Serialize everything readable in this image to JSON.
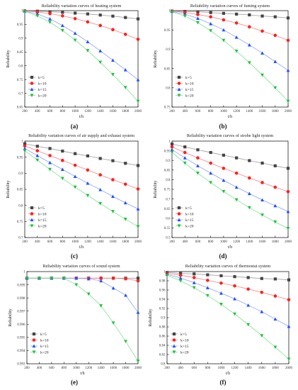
{
  "figure": {
    "panel_letters": [
      "(a)",
      "(b)",
      "(c)",
      "(d)",
      "(e)",
      "(f)"
    ]
  },
  "chart_data": [
    {
      "type": "line",
      "title": "Reliability variation curves of heating system",
      "xlabel": "t/h",
      "ylabel": "Reliability",
      "xlim": [
        200,
        2000
      ],
      "ylim": [
        0.65,
        1.0
      ],
      "x_ticks": [
        200,
        400,
        600,
        800,
        1000,
        1200,
        1400,
        1600,
        1800,
        2000
      ],
      "y_ticks": [
        0.65,
        0.7,
        0.75,
        0.8,
        0.85,
        0.9,
        0.95,
        1
      ],
      "legend_position": "lower-left",
      "x": [
        200,
        400,
        600,
        800,
        1000,
        1200,
        1400,
        1600,
        1800,
        2000
      ],
      "series": [
        {
          "name": "k=5",
          "marker": "square",
          "color": "#444444",
          "line_color": "#9a9a9a",
          "values": [
            0.999,
            0.998,
            0.996,
            0.994,
            0.991,
            0.988,
            0.984,
            0.98,
            0.975,
            0.97
          ]
        },
        {
          "name": "k=10",
          "marker": "circle",
          "color": "#ff2020",
          "line_color": "#ff8080",
          "values": [
            0.999,
            0.995,
            0.989,
            0.981,
            0.971,
            0.959,
            0.946,
            0.931,
            0.914,
            0.896
          ]
        },
        {
          "name": "k=15",
          "marker": "triangle-up",
          "color": "#1f4fff",
          "line_color": "#8aa0ff",
          "values": [
            0.998,
            0.988,
            0.97,
            0.946,
            0.918,
            0.887,
            0.854,
            0.82,
            0.785,
            0.749
          ]
        },
        {
          "name": "k=20",
          "marker": "triangle-down",
          "color": "#1fbf3f",
          "line_color": "#7fe08f",
          "values": [
            0.997,
            0.981,
            0.958,
            0.928,
            0.893,
            0.855,
            0.813,
            0.768,
            0.721,
            0.671
          ]
        }
      ]
    },
    {
      "type": "line",
      "title": "Reliability variation curves of fuming system",
      "xlabel": "t/h",
      "ylabel": "Reliability",
      "xlim": [
        200,
        2000
      ],
      "ylim": [
        0.75,
        1.0
      ],
      "x_ticks": [
        200,
        400,
        600,
        800,
        1000,
        1200,
        1400,
        1600,
        1800,
        2000
      ],
      "y_ticks": [
        0.75,
        0.8,
        0.85,
        0.9,
        0.95,
        1
      ],
      "legend_position": "lower-left",
      "x": [
        200,
        400,
        600,
        800,
        1000,
        1200,
        1400,
        1600,
        1800,
        2000
      ],
      "series": [
        {
          "name": "k=5",
          "marker": "square",
          "color": "#444444",
          "line_color": "#9a9a9a",
          "values": [
            0.999,
            0.998,
            0.997,
            0.995,
            0.993,
            0.991,
            0.989,
            0.986,
            0.984,
            0.981
          ]
        },
        {
          "name": "k=10",
          "marker": "circle",
          "color": "#ff2020",
          "line_color": "#ff8080",
          "values": [
            0.999,
            0.995,
            0.99,
            0.984,
            0.976,
            0.968,
            0.958,
            0.947,
            0.936,
            0.923
          ]
        },
        {
          "name": "k=15",
          "marker": "triangle-up",
          "color": "#1f4fff",
          "line_color": "#8aa0ff",
          "values": [
            0.998,
            0.991,
            0.98,
            0.966,
            0.95,
            0.931,
            0.911,
            0.89,
            0.868,
            0.845
          ]
        },
        {
          "name": "k=20",
          "marker": "triangle-down",
          "color": "#1fbf3f",
          "line_color": "#7fe08f",
          "values": [
            0.997,
            0.986,
            0.969,
            0.948,
            0.923,
            0.895,
            0.865,
            0.833,
            0.8,
            0.765
          ]
        }
      ]
    },
    {
      "type": "line",
      "title": "Reliability variation curves of  air supply and exhaust system",
      "xlabel": "t/h",
      "ylabel": "Reliability",
      "xlim": [
        200,
        2000
      ],
      "ylim": [
        0.7,
        1.0
      ],
      "x_ticks": [
        200,
        400,
        600,
        800,
        1000,
        1200,
        1400,
        1600,
        1800,
        2000
      ],
      "y_ticks": [
        0.7,
        0.75,
        0.8,
        0.85,
        0.9,
        0.95,
        1
      ],
      "legend_position": "lower-left",
      "x": [
        200,
        400,
        600,
        800,
        1000,
        1200,
        1400,
        1600,
        1800,
        2000
      ],
      "series": [
        {
          "name": "k=5",
          "marker": "square",
          "color": "#444444",
          "line_color": "#9a9a9a",
          "values": [
            0.992,
            0.984,
            0.977,
            0.969,
            0.961,
            0.954,
            0.946,
            0.939,
            0.931,
            0.924
          ]
        },
        {
          "name": "k=10",
          "marker": "circle",
          "color": "#ff2020",
          "line_color": "#ff8080",
          "values": [
            0.985,
            0.97,
            0.955,
            0.94,
            0.925,
            0.91,
            0.895,
            0.88,
            0.866,
            0.851
          ]
        },
        {
          "name": "k=15",
          "marker": "triangle-up",
          "color": "#1f4fff",
          "line_color": "#8aa0ff",
          "values": [
            0.977,
            0.955,
            0.933,
            0.912,
            0.89,
            0.869,
            0.849,
            0.828,
            0.808,
            0.789
          ]
        },
        {
          "name": "k=20",
          "marker": "triangle-down",
          "color": "#1fbf3f",
          "line_color": "#7fe08f",
          "values": [
            0.97,
            0.941,
            0.912,
            0.884,
            0.857,
            0.831,
            0.806,
            0.781,
            0.757,
            0.734
          ]
        }
      ]
    },
    {
      "type": "line",
      "title": "Reliability variation curves of strobe light system",
      "xlabel": "t/h",
      "ylabel": "Reliability",
      "xlim": [
        200,
        2000
      ],
      "ylim": [
        0.5,
        1.0
      ],
      "x_ticks": [
        200,
        400,
        600,
        800,
        1000,
        1200,
        1400,
        1600,
        1800,
        2000
      ],
      "y_ticks": [
        0.5,
        0.55,
        0.6,
        0.65,
        0.7,
        0.75,
        0.8,
        0.85,
        0.9,
        0.95,
        1
      ],
      "legend_position": "lower-left",
      "x": [
        200,
        400,
        600,
        800,
        1000,
        1200,
        1400,
        1600,
        1800,
        2000
      ],
      "series": [
        {
          "name": "k=5",
          "marker": "square",
          "color": "#444444",
          "line_color": "#9a9a9a",
          "values": [
            0.985,
            0.97,
            0.955,
            0.941,
            0.927,
            0.913,
            0.899,
            0.886,
            0.872,
            0.859
          ]
        },
        {
          "name": "k=10",
          "marker": "circle",
          "color": "#ff2020",
          "line_color": "#ff8080",
          "values": [
            0.97,
            0.941,
            0.913,
            0.886,
            0.859,
            0.834,
            0.809,
            0.785,
            0.761,
            0.738
          ]
        },
        {
          "name": "k=15",
          "marker": "triangle-up",
          "color": "#1f4fff",
          "line_color": "#8aa0ff",
          "values": [
            0.956,
            0.913,
            0.872,
            0.834,
            0.797,
            0.761,
            0.728,
            0.695,
            0.665,
            0.635
          ]
        },
        {
          "name": "k=20",
          "marker": "triangle-down",
          "color": "#1fbf3f",
          "line_color": "#7fe08f",
          "values": [
            0.942,
            0.886,
            0.834,
            0.785,
            0.739,
            0.696,
            0.655,
            0.617,
            0.581,
            0.547
          ]
        }
      ]
    },
    {
      "type": "line",
      "title": "Reliability variation curves of sound system",
      "xlabel": "t/h",
      "ylabel": "Reliability",
      "xlim": [
        200,
        2000
      ],
      "ylim": [
        0.993,
        1.0
      ],
      "x_ticks": [
        200,
        400,
        600,
        800,
        1000,
        1200,
        1400,
        1600,
        1800,
        2000
      ],
      "y_ticks": [
        0.993,
        0.994,
        0.995,
        0.996,
        0.997,
        0.998,
        0.999,
        1
      ],
      "y_tick_labels": [
        "0.993",
        "0.994",
        "0.995",
        "0.996",
        "0.997",
        "0.998",
        "0.999",
        "1"
      ],
      "legend_position": "lower-left",
      "x": [
        200,
        400,
        600,
        800,
        1000,
        1200,
        1400,
        1600,
        1800,
        2000
      ],
      "series": [
        {
          "name": "k=5",
          "marker": "square",
          "color": "#444444",
          "line_color": "#9a9a9a",
          "values": [
            0.9995,
            0.9995,
            0.9995,
            0.9995,
            0.9995,
            0.9995,
            0.9995,
            0.9995,
            0.9995,
            0.9995
          ]
        },
        {
          "name": "k=10",
          "marker": "circle",
          "color": "#ff2020",
          "line_color": "#ff8080",
          "values": [
            0.9995,
            0.9995,
            0.9995,
            0.9995,
            0.9995,
            0.9995,
            0.9995,
            0.9995,
            0.99945,
            0.9993
          ]
        },
        {
          "name": "k=15",
          "marker": "triangle-up",
          "color": "#1f4fff",
          "line_color": "#8aa0ff",
          "values": [
            0.9995,
            0.9995,
            0.9995,
            0.9995,
            0.9995,
            0.99945,
            0.9993,
            0.99875,
            0.9982,
            0.9969
          ]
        },
        {
          "name": "k=20",
          "marker": "triangle-down",
          "color": "#1fbf3f",
          "line_color": "#7fe08f",
          "values": [
            0.9995,
            0.9995,
            0.9995,
            0.9995,
            0.999,
            0.9983,
            0.9974,
            0.9961,
            0.9947,
            0.9932
          ]
        }
      ]
    },
    {
      "type": "line",
      "title": "Reliability variation curves of thermostat system",
      "xlabel": "t/h",
      "ylabel": "Reliability",
      "xlim": [
        200,
        2000
      ],
      "ylim": [
        0.8,
        1.0
      ],
      "x_ticks": [
        200,
        400,
        600,
        800,
        1000,
        1200,
        1400,
        1600,
        1800,
        2000
      ],
      "y_ticks": [
        0.8,
        0.82,
        0.84,
        0.86,
        0.88,
        0.9,
        0.92,
        0.94,
        0.96,
        0.98,
        1
      ],
      "legend_position": "lower-left",
      "x": [
        200,
        400,
        600,
        800,
        1000,
        1200,
        1400,
        1600,
        1800,
        2000
      ],
      "series": [
        {
          "name": "k=5",
          "marker": "square",
          "color": "#444444",
          "line_color": "#9a9a9a",
          "values": [
            0.998,
            0.996,
            0.995,
            0.993,
            0.991,
            0.989,
            0.987,
            0.985,
            0.984,
            0.982
          ]
        },
        {
          "name": "k=10",
          "marker": "circle",
          "color": "#ff2020",
          "line_color": "#ff8080",
          "values": [
            0.996,
            0.992,
            0.987,
            0.981,
            0.975,
            0.969,
            0.962,
            0.955,
            0.947,
            0.939
          ]
        },
        {
          "name": "k=15",
          "marker": "triangle-up",
          "color": "#1f4fff",
          "line_color": "#8aa0ff",
          "values": [
            0.994,
            0.986,
            0.976,
            0.965,
            0.953,
            0.941,
            0.927,
            0.913,
            0.897,
            0.881
          ]
        },
        {
          "name": "k=20",
          "marker": "triangle-down",
          "color": "#1fbf3f",
          "line_color": "#7fe08f",
          "values": [
            0.992,
            0.98,
            0.965,
            0.948,
            0.929,
            0.908,
            0.885,
            0.861,
            0.836,
            0.81
          ]
        }
      ]
    }
  ]
}
